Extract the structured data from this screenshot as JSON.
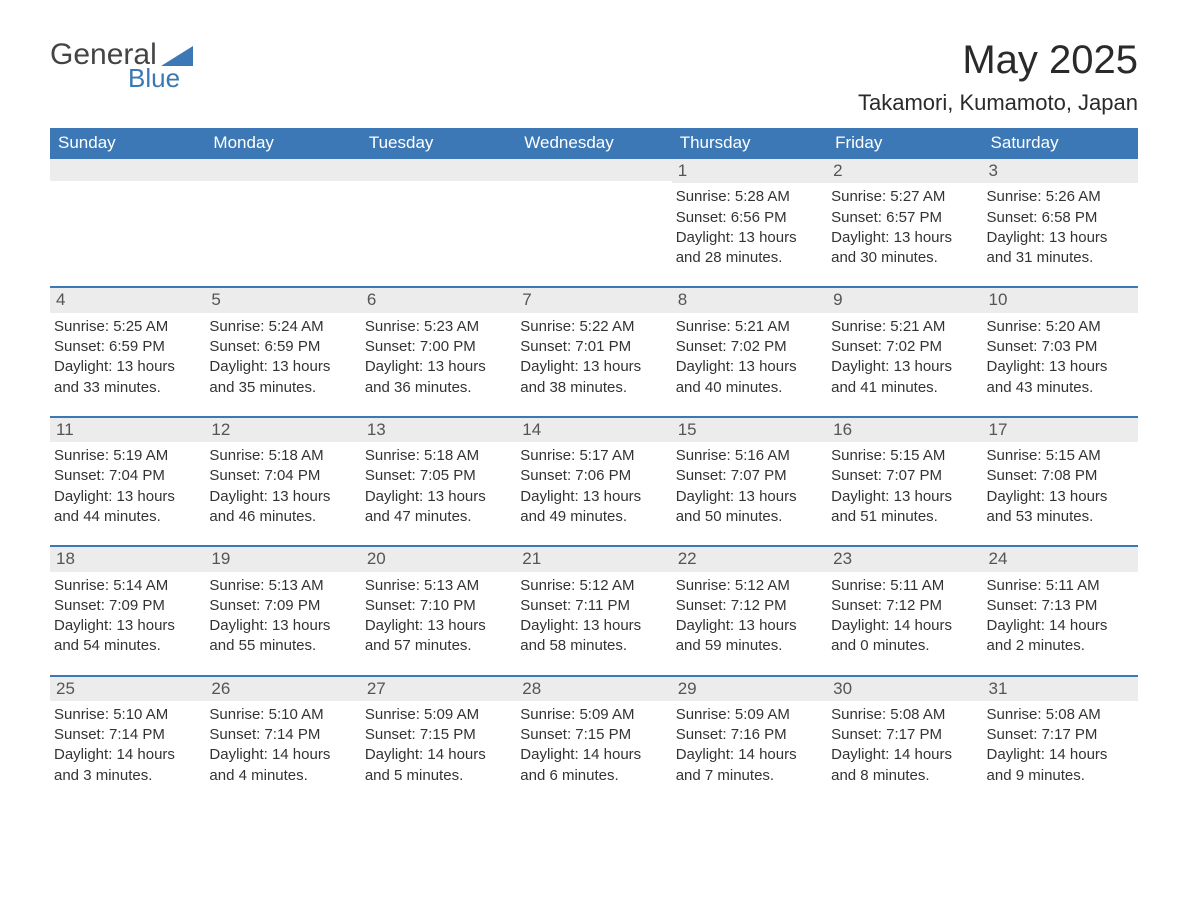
{
  "logo": {
    "word1": "General",
    "word2": "Blue"
  },
  "title": "May 2025",
  "location": "Takamori, Kumamoto, Japan",
  "colors": {
    "header_bg": "#3b78b5",
    "header_text": "#ffffff",
    "daynum_bg": "#ececec",
    "daynum_text": "#555555",
    "body_text": "#333333",
    "rule": "#3b78b5",
    "logo_accent": "#3b78b5",
    "page_bg": "#ffffff"
  },
  "typography": {
    "title_fontsize_pt": 30,
    "location_fontsize_pt": 16,
    "header_fontsize_pt": 13,
    "cell_fontsize_pt": 11
  },
  "day_names": [
    "Sunday",
    "Monday",
    "Tuesday",
    "Wednesday",
    "Thursday",
    "Friday",
    "Saturday"
  ],
  "weeks": [
    [
      {
        "day": "",
        "sunrise": "",
        "sunset": "",
        "daylight": ""
      },
      {
        "day": "",
        "sunrise": "",
        "sunset": "",
        "daylight": ""
      },
      {
        "day": "",
        "sunrise": "",
        "sunset": "",
        "daylight": ""
      },
      {
        "day": "",
        "sunrise": "",
        "sunset": "",
        "daylight": ""
      },
      {
        "day": "1",
        "sunrise": "Sunrise: 5:28 AM",
        "sunset": "Sunset: 6:56 PM",
        "daylight": "Daylight: 13 hours and 28 minutes."
      },
      {
        "day": "2",
        "sunrise": "Sunrise: 5:27 AM",
        "sunset": "Sunset: 6:57 PM",
        "daylight": "Daylight: 13 hours and 30 minutes."
      },
      {
        "day": "3",
        "sunrise": "Sunrise: 5:26 AM",
        "sunset": "Sunset: 6:58 PM",
        "daylight": "Daylight: 13 hours and 31 minutes."
      }
    ],
    [
      {
        "day": "4",
        "sunrise": "Sunrise: 5:25 AM",
        "sunset": "Sunset: 6:59 PM",
        "daylight": "Daylight: 13 hours and 33 minutes."
      },
      {
        "day": "5",
        "sunrise": "Sunrise: 5:24 AM",
        "sunset": "Sunset: 6:59 PM",
        "daylight": "Daylight: 13 hours and 35 minutes."
      },
      {
        "day": "6",
        "sunrise": "Sunrise: 5:23 AM",
        "sunset": "Sunset: 7:00 PM",
        "daylight": "Daylight: 13 hours and 36 minutes."
      },
      {
        "day": "7",
        "sunrise": "Sunrise: 5:22 AM",
        "sunset": "Sunset: 7:01 PM",
        "daylight": "Daylight: 13 hours and 38 minutes."
      },
      {
        "day": "8",
        "sunrise": "Sunrise: 5:21 AM",
        "sunset": "Sunset: 7:02 PM",
        "daylight": "Daylight: 13 hours and 40 minutes."
      },
      {
        "day": "9",
        "sunrise": "Sunrise: 5:21 AM",
        "sunset": "Sunset: 7:02 PM",
        "daylight": "Daylight: 13 hours and 41 minutes."
      },
      {
        "day": "10",
        "sunrise": "Sunrise: 5:20 AM",
        "sunset": "Sunset: 7:03 PM",
        "daylight": "Daylight: 13 hours and 43 minutes."
      }
    ],
    [
      {
        "day": "11",
        "sunrise": "Sunrise: 5:19 AM",
        "sunset": "Sunset: 7:04 PM",
        "daylight": "Daylight: 13 hours and 44 minutes."
      },
      {
        "day": "12",
        "sunrise": "Sunrise: 5:18 AM",
        "sunset": "Sunset: 7:04 PM",
        "daylight": "Daylight: 13 hours and 46 minutes."
      },
      {
        "day": "13",
        "sunrise": "Sunrise: 5:18 AM",
        "sunset": "Sunset: 7:05 PM",
        "daylight": "Daylight: 13 hours and 47 minutes."
      },
      {
        "day": "14",
        "sunrise": "Sunrise: 5:17 AM",
        "sunset": "Sunset: 7:06 PM",
        "daylight": "Daylight: 13 hours and 49 minutes."
      },
      {
        "day": "15",
        "sunrise": "Sunrise: 5:16 AM",
        "sunset": "Sunset: 7:07 PM",
        "daylight": "Daylight: 13 hours and 50 minutes."
      },
      {
        "day": "16",
        "sunrise": "Sunrise: 5:15 AM",
        "sunset": "Sunset: 7:07 PM",
        "daylight": "Daylight: 13 hours and 51 minutes."
      },
      {
        "day": "17",
        "sunrise": "Sunrise: 5:15 AM",
        "sunset": "Sunset: 7:08 PM",
        "daylight": "Daylight: 13 hours and 53 minutes."
      }
    ],
    [
      {
        "day": "18",
        "sunrise": "Sunrise: 5:14 AM",
        "sunset": "Sunset: 7:09 PM",
        "daylight": "Daylight: 13 hours and 54 minutes."
      },
      {
        "day": "19",
        "sunrise": "Sunrise: 5:13 AM",
        "sunset": "Sunset: 7:09 PM",
        "daylight": "Daylight: 13 hours and 55 minutes."
      },
      {
        "day": "20",
        "sunrise": "Sunrise: 5:13 AM",
        "sunset": "Sunset: 7:10 PM",
        "daylight": "Daylight: 13 hours and 57 minutes."
      },
      {
        "day": "21",
        "sunrise": "Sunrise: 5:12 AM",
        "sunset": "Sunset: 7:11 PM",
        "daylight": "Daylight: 13 hours and 58 minutes."
      },
      {
        "day": "22",
        "sunrise": "Sunrise: 5:12 AM",
        "sunset": "Sunset: 7:12 PM",
        "daylight": "Daylight: 13 hours and 59 minutes."
      },
      {
        "day": "23",
        "sunrise": "Sunrise: 5:11 AM",
        "sunset": "Sunset: 7:12 PM",
        "daylight": "Daylight: 14 hours and 0 minutes."
      },
      {
        "day": "24",
        "sunrise": "Sunrise: 5:11 AM",
        "sunset": "Sunset: 7:13 PM",
        "daylight": "Daylight: 14 hours and 2 minutes."
      }
    ],
    [
      {
        "day": "25",
        "sunrise": "Sunrise: 5:10 AM",
        "sunset": "Sunset: 7:14 PM",
        "daylight": "Daylight: 14 hours and 3 minutes."
      },
      {
        "day": "26",
        "sunrise": "Sunrise: 5:10 AM",
        "sunset": "Sunset: 7:14 PM",
        "daylight": "Daylight: 14 hours and 4 minutes."
      },
      {
        "day": "27",
        "sunrise": "Sunrise: 5:09 AM",
        "sunset": "Sunset: 7:15 PM",
        "daylight": "Daylight: 14 hours and 5 minutes."
      },
      {
        "day": "28",
        "sunrise": "Sunrise: 5:09 AM",
        "sunset": "Sunset: 7:15 PM",
        "daylight": "Daylight: 14 hours and 6 minutes."
      },
      {
        "day": "29",
        "sunrise": "Sunrise: 5:09 AM",
        "sunset": "Sunset: 7:16 PM",
        "daylight": "Daylight: 14 hours and 7 minutes."
      },
      {
        "day": "30",
        "sunrise": "Sunrise: 5:08 AM",
        "sunset": "Sunset: 7:17 PM",
        "daylight": "Daylight: 14 hours and 8 minutes."
      },
      {
        "day": "31",
        "sunrise": "Sunrise: 5:08 AM",
        "sunset": "Sunset: 7:17 PM",
        "daylight": "Daylight: 14 hours and 9 minutes."
      }
    ]
  ]
}
